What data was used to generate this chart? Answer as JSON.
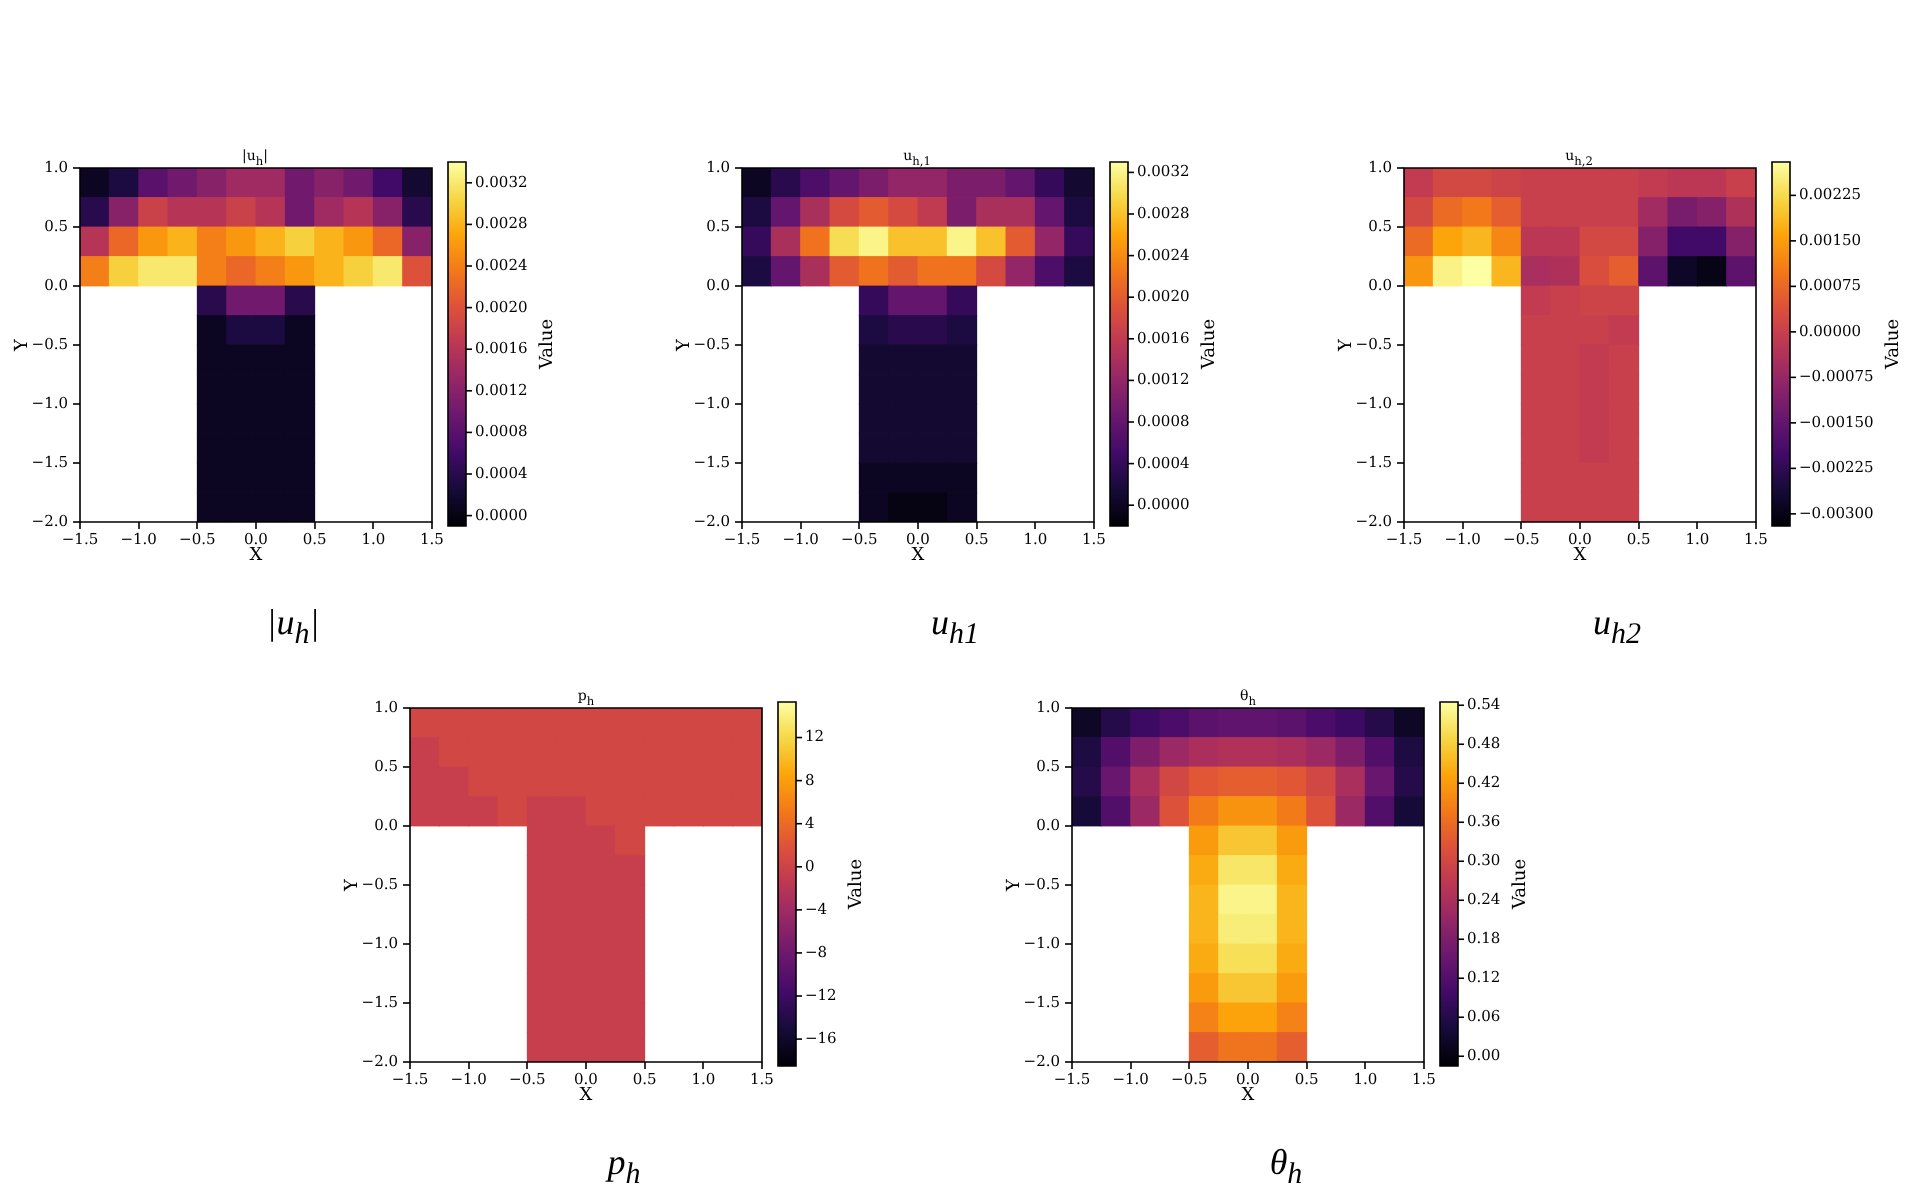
{
  "chart_data": [
    {
      "type": "scatter",
      "marker": "square",
      "title": "|u$_{h}$|",
      "xlabel": "X",
      "ylabel": "Y",
      "clabel": "Value",
      "annotations": [
        "|u$_{h}$|"
      ],
      "x": [
        -1.375,
        -1.125,
        -0.875,
        -0.625,
        -0.375,
        -0.125,
        0.125,
        0.375,
        0.625,
        0.875,
        1.125,
        1.375,
        -1.375,
        -1.125,
        -0.875,
        -0.625,
        -0.375,
        -0.125,
        0.125,
        0.375,
        0.625,
        0.875,
        1.125,
        1.375,
        -1.375,
        -1.125,
        -0.875,
        -0.625,
        -0.375,
        -0.125,
        0.125,
        0.375,
        0.625,
        0.875,
        1.125,
        1.375,
        -1.375,
        -1.125,
        -0.875,
        -0.625,
        -0.375,
        -0.125,
        0.125,
        0.375,
        0.625,
        0.875,
        1.125,
        1.375,
        -0.375,
        -0.125,
        0.125,
        0.375,
        -0.375,
        -0.125,
        0.125,
        0.375,
        -0.375,
        -0.125,
        0.125,
        0.375,
        -0.375,
        -0.125,
        0.125,
        0.375,
        -0.375,
        -0.125,
        0.125,
        0.375,
        -0.375,
        -0.125,
        0.125,
        0.375,
        -0.375,
        -0.125,
        0.125,
        0.375,
        -0.375,
        -0.125,
        0.125,
        0.375
      ],
      "values": [
        0.875,
        0.875,
        0.875,
        0.875,
        0.875,
        0.875,
        0.875,
        0.875,
        0.875,
        0.875,
        0.875,
        0.875,
        0.625,
        0.625,
        0.625,
        0.625,
        0.625,
        0.625,
        0.625,
        0.625,
        0.625,
        0.625,
        0.625,
        0.625,
        0.375,
        0.375,
        0.375,
        0.375,
        0.375,
        0.375,
        0.375,
        0.375,
        0.375,
        0.375,
        0.375,
        0.375,
        0.125,
        0.125,
        0.125,
        0.125,
        0.125,
        0.125,
        0.125,
        0.125,
        0.125,
        0.125,
        0.125,
        0.125,
        -0.125,
        -0.125,
        -0.125,
        -0.125,
        -0.375,
        -0.375,
        -0.375,
        -0.375,
        -0.625,
        -0.625,
        -0.625,
        -0.625,
        -0.875,
        -0.875,
        -0.875,
        -0.875,
        -1.125,
        -1.125,
        -1.125,
        -1.125,
        -1.375,
        -1.375,
        -1.375,
        -1.375,
        -1.625,
        -1.625,
        -1.625,
        -1.625,
        -1.875,
        -1.875,
        -1.875,
        -1.875
      ],
      "cvalues": [
        0.0001,
        0.0003,
        0.0008,
        0.001,
        0.0012,
        0.0014,
        0.0014,
        0.001,
        0.0012,
        0.001,
        0.0006,
        0.0002,
        0.0004,
        0.0012,
        0.0018,
        0.0016,
        0.0016,
        0.0018,
        0.0016,
        0.001,
        0.0014,
        0.0016,
        0.0012,
        0.0004,
        0.0016,
        0.0022,
        0.0026,
        0.0028,
        0.0024,
        0.0026,
        0.0028,
        0.003,
        0.0028,
        0.0026,
        0.0022,
        0.0012,
        0.0024,
        0.003,
        0.0032,
        0.0032,
        0.0024,
        0.0022,
        0.0024,
        0.0026,
        0.0028,
        0.003,
        0.0032,
        0.002,
        0.0004,
        0.001,
        0.001,
        0.0004,
        0.0001,
        0.0003,
        0.0003,
        0.0001,
        0.0001,
        0.0001,
        0.0001,
        0.0001,
        0.0001,
        0.0001,
        0.0001,
        0.0001,
        0.0001,
        0.0001,
        0.0001,
        0.0001,
        0.0001,
        0.0001,
        0.0001,
        0.0001,
        0.0001,
        0.0001,
        0.0001,
        0.0001,
        0.0001,
        0.0001,
        0.0001,
        0.0001
      ],
      "xlim": [
        -1.5,
        1.5
      ],
      "ylim": [
        -2,
        1
      ],
      "xticks": [
        {
          "value": -1.5,
          "label": "−1.5"
        },
        {
          "value": -1,
          "label": "−1.0"
        },
        {
          "value": -0.5,
          "label": "−0.5"
        },
        {
          "value": 0,
          "label": "0.0"
        },
        {
          "value": 0.5,
          "label": "0.5"
        },
        {
          "value": 1,
          "label": "1.0"
        },
        {
          "value": 1.5,
          "label": "1.5"
        }
      ],
      "yticks": [
        {
          "value": -2,
          "label": "−2.0"
        },
        {
          "value": -1.5,
          "label": "−1.5"
        },
        {
          "value": -1,
          "label": "−1.0"
        },
        {
          "value": -0.5,
          "label": "−0.5"
        },
        {
          "value": 0,
          "label": "0.0"
        },
        {
          "value": 0.5,
          "label": "0.5"
        },
        {
          "value": 1,
          "label": "1.0"
        }
      ],
      "clim": [
        -0.0001,
        0.0034
      ],
      "cticks": [
        {
          "value": 0,
          "label": "0.0000"
        },
        0.0004,
        0.0008,
        0.0012,
        0.0016,
        {
          "value": 0.002,
          "label": "0.0020"
        },
        0.0024,
        0.0028,
        0.0032
      ]
    },
    {
      "type": "scatter",
      "marker": "square",
      "title": "u$_{h,1}$",
      "xlabel": "X",
      "ylabel": "Y",
      "clabel": "Value",
      "annotations": [
        "u$_{h1}$"
      ],
      "x": [
        -1.375,
        -1.125,
        -0.875,
        -0.625,
        -0.375,
        -0.125,
        0.125,
        0.375,
        0.625,
        0.875,
        1.125,
        1.375,
        -1.375,
        -1.125,
        -0.875,
        -0.625,
        -0.375,
        -0.125,
        0.125,
        0.375,
        0.625,
        0.875,
        1.125,
        1.375,
        -1.375,
        -1.125,
        -0.875,
        -0.625,
        -0.375,
        -0.125,
        0.125,
        0.375,
        0.625,
        0.875,
        1.125,
        1.375,
        -1.375,
        -1.125,
        -0.875,
        -0.625,
        -0.375,
        -0.125,
        0.125,
        0.375,
        0.625,
        0.875,
        1.125,
        1.375,
        -0.375,
        -0.125,
        0.125,
        0.375,
        -0.375,
        -0.125,
        0.125,
        0.375,
        -0.375,
        -0.125,
        0.125,
        0.375,
        -0.375,
        -0.125,
        0.125,
        0.375,
        -0.375,
        -0.125,
        0.125,
        0.375,
        -0.375,
        -0.125,
        0.125,
        0.375,
        -0.375,
        -0.125,
        0.125,
        0.375,
        -0.375,
        -0.125,
        0.125,
        0.375
      ],
      "values": [
        0.875,
        0.875,
        0.875,
        0.875,
        0.875,
        0.875,
        0.875,
        0.875,
        0.875,
        0.875,
        0.875,
        0.875,
        0.625,
        0.625,
        0.625,
        0.625,
        0.625,
        0.625,
        0.625,
        0.625,
        0.625,
        0.625,
        0.625,
        0.625,
        0.375,
        0.375,
        0.375,
        0.375,
        0.375,
        0.375,
        0.375,
        0.375,
        0.375,
        0.375,
        0.375,
        0.375,
        0.125,
        0.125,
        0.125,
        0.125,
        0.125,
        0.125,
        0.125,
        0.125,
        0.125,
        0.125,
        0.125,
        0.125,
        -0.125,
        -0.125,
        -0.125,
        -0.125,
        -0.375,
        -0.375,
        -0.375,
        -0.375,
        -0.625,
        -0.625,
        -0.625,
        -0.625,
        -0.875,
        -0.875,
        -0.875,
        -0.875,
        -1.125,
        -1.125,
        -1.125,
        -1.125,
        -1.375,
        -1.375,
        -1.375,
        -1.375,
        -1.625,
        -1.625,
        -1.625,
        -1.625,
        -1.875,
        -1.875,
        -1.875,
        -1.875
      ],
      "cvalues": [
        0.0,
        0.0003,
        0.0006,
        0.0008,
        0.001,
        0.0012,
        0.0012,
        0.001,
        0.001,
        0.0008,
        0.0004,
        0.0001,
        0.0002,
        0.0008,
        0.0014,
        0.0018,
        0.002,
        0.0018,
        0.0016,
        0.001,
        0.0014,
        0.0014,
        0.0008,
        0.0002,
        0.0004,
        0.0014,
        0.0022,
        0.003,
        0.0032,
        0.0028,
        0.0028,
        0.0032,
        0.0028,
        0.002,
        0.0012,
        0.0004,
        0.0002,
        0.0008,
        0.0014,
        0.002,
        0.0022,
        0.002,
        0.0022,
        0.0022,
        0.0018,
        0.0012,
        0.0006,
        0.0002,
        0.0004,
        0.0008,
        0.0008,
        0.0004,
        0.0002,
        0.0003,
        0.0003,
        0.0002,
        0.0001,
        0.0001,
        0.0001,
        0.0001,
        0.0001,
        0.0001,
        0.0001,
        0.0001,
        0.0001,
        0.0001,
        0.0001,
        0.0001,
        0.0001,
        0.0001,
        0.0001,
        0.0001,
        0.0,
        0.0,
        0.0,
        0.0,
        0.0,
        -0.0001,
        -0.0001,
        0.0
      ],
      "xlim": [
        -1.5,
        1.5
      ],
      "ylim": [
        -2,
        1
      ],
      "xticks": [
        {
          "value": -1.5,
          "label": "−1.5"
        },
        {
          "value": -1,
          "label": "−1.0"
        },
        {
          "value": -0.5,
          "label": "−0.5"
        },
        {
          "value": 0,
          "label": "0.0"
        },
        {
          "value": 0.5,
          "label": "0.5"
        },
        {
          "value": 1,
          "label": "1.0"
        },
        {
          "value": 1.5,
          "label": "1.5"
        }
      ],
      "yticks": [
        {
          "value": -2,
          "label": "−2.0"
        },
        {
          "value": -1.5,
          "label": "−1.5"
        },
        {
          "value": -1,
          "label": "−1.0"
        },
        {
          "value": -0.5,
          "label": "−0.5"
        },
        {
          "value": 0,
          "label": "0.0"
        },
        {
          "value": 0.5,
          "label": "0.5"
        },
        {
          "value": 1,
          "label": "1.0"
        }
      ],
      "clim": [
        -0.0002,
        0.0033
      ],
      "cticks": [
        {
          "value": 0,
          "label": "0.0000"
        },
        0.0004,
        0.0008,
        0.0012,
        0.0016,
        {
          "value": 0.002,
          "label": "0.0020"
        },
        0.0024,
        0.0028,
        0.0032
      ]
    },
    {
      "type": "scatter",
      "marker": "square",
      "title": "u$_{h,2}$",
      "xlabel": "X",
      "ylabel": "Y",
      "clabel": "Value",
      "annotations": [
        "u$_{h2}$"
      ],
      "x": [
        -1.375,
        -1.125,
        -0.875,
        -0.625,
        -0.375,
        -0.125,
        0.125,
        0.375,
        0.625,
        0.875,
        1.125,
        1.375,
        -1.375,
        -1.125,
        -0.875,
        -0.625,
        -0.375,
        -0.125,
        0.125,
        0.375,
        0.625,
        0.875,
        1.125,
        1.375,
        -1.375,
        -1.125,
        -0.875,
        -0.625,
        -0.375,
        -0.125,
        0.125,
        0.375,
        0.625,
        0.875,
        1.125,
        1.375,
        -1.375,
        -1.125,
        -0.875,
        -0.625,
        -0.375,
        -0.125,
        0.125,
        0.375,
        0.625,
        0.875,
        1.125,
        1.375,
        -0.375,
        -0.125,
        0.125,
        0.375,
        -0.375,
        -0.125,
        0.125,
        0.375,
        -0.375,
        -0.125,
        0.125,
        0.375,
        -0.375,
        -0.125,
        0.125,
        0.375,
        -0.375,
        -0.125,
        0.125,
        0.375,
        -0.375,
        -0.125,
        0.125,
        0.375,
        -0.375,
        -0.125,
        0.125,
        0.375,
        -0.375,
        -0.125,
        0.125,
        0.375
      ],
      "values": [
        0.875,
        0.875,
        0.875,
        0.875,
        0.875,
        0.875,
        0.875,
        0.875,
        0.875,
        0.875,
        0.875,
        0.875,
        0.625,
        0.625,
        0.625,
        0.625,
        0.625,
        0.625,
        0.625,
        0.625,
        0.625,
        0.625,
        0.625,
        0.625,
        0.375,
        0.375,
        0.375,
        0.375,
        0.375,
        0.375,
        0.375,
        0.375,
        0.375,
        0.375,
        0.375,
        0.375,
        0.125,
        0.125,
        0.125,
        0.125,
        0.125,
        0.125,
        0.125,
        0.125,
        0.125,
        0.125,
        0.125,
        0.125,
        -0.125,
        -0.125,
        -0.125,
        -0.125,
        -0.375,
        -0.375,
        -0.375,
        -0.375,
        -0.625,
        -0.625,
        -0.625,
        -0.625,
        -0.875,
        -0.875,
        -0.875,
        -0.875,
        -1.125,
        -1.125,
        -1.125,
        -1.125,
        -1.375,
        -1.375,
        -1.375,
        -1.375,
        -1.625,
        -1.625,
        -1.625,
        -1.625,
        -1.875,
        -1.875,
        -1.875,
        -1.875
      ],
      "cvalues": [
        -0.0001,
        0.0002,
        0.0002,
        0.0001,
        0.0,
        0.0,
        0.0,
        0.0,
        -0.0001,
        -0.0002,
        -0.0002,
        0.0,
        0.0002,
        0.0008,
        0.001,
        0.0006,
        0.0,
        0.0,
        0.0,
        0.0,
        -0.0006,
        -0.0012,
        -0.001,
        -0.0004,
        0.0008,
        0.0016,
        0.0018,
        0.0012,
        -0.0002,
        -0.0002,
        0.0002,
        0.0002,
        -0.001,
        -0.002,
        -0.002,
        -0.001,
        0.0014,
        0.0026,
        0.0028,
        0.0018,
        -0.0005,
        -0.0004,
        0.0003,
        0.0006,
        -0.0016,
        -0.0028,
        -0.003,
        -0.0016,
        -0.0001,
        0.0,
        0.0001,
        0.0001,
        0.0,
        0.0,
        0.0,
        -0.0001,
        0.0,
        0.0,
        -0.0001,
        0.0,
        0.0,
        0.0,
        -0.0001,
        0.0,
        0.0,
        0.0,
        -0.0001,
        0.0,
        0.0,
        0.0,
        -0.0001,
        0.0,
        0.0,
        0.0,
        0.0,
        0.0,
        0.0,
        0.0,
        0.0,
        0.0
      ],
      "xlim": [
        -1.5,
        1.5
      ],
      "ylim": [
        -2,
        1
      ],
      "xticks": [
        {
          "value": -1.5,
          "label": "−1.5"
        },
        {
          "value": -1,
          "label": "−1.0"
        },
        {
          "value": -0.5,
          "label": "−0.5"
        },
        {
          "value": 0,
          "label": "0.0"
        },
        {
          "value": 0.5,
          "label": "0.5"
        },
        {
          "value": 1,
          "label": "1.0"
        },
        {
          "value": 1.5,
          "label": "1.5"
        }
      ],
      "yticks": [
        {
          "value": -2,
          "label": "−2.0"
        },
        {
          "value": -1.5,
          "label": "−1.5"
        },
        {
          "value": -1,
          "label": "−1.0"
        },
        {
          "value": -0.5,
          "label": "−0.5"
        },
        {
          "value": 0,
          "label": "0.0"
        },
        {
          "value": 0.5,
          "label": "0.5"
        },
        {
          "value": 1,
          "label": "1.0"
        }
      ],
      "clim": [
        -0.0032,
        0.0028
      ],
      "cticks": [
        {
          "value": -0.003,
          "label": "−0.00300"
        },
        {
          "value": -0.00225,
          "label": "−0.00225"
        },
        {
          "value": -0.0015,
          "label": "−0.00150"
        },
        {
          "value": -0.00075,
          "label": "−0.00075"
        },
        {
          "value": 0,
          "label": "0.00000"
        },
        0.00075,
        {
          "value": 0.0015,
          "label": "0.00150"
        },
        0.00225
      ]
    },
    {
      "type": "scatter",
      "marker": "square",
      "title": "p$_{h}$",
      "xlabel": "X",
      "ylabel": "Y",
      "clabel": "Value",
      "annotations": [
        "p$_{h}$"
      ],
      "x": [
        -1.375,
        -1.125,
        -0.875,
        -0.625,
        -0.375,
        -0.125,
        0.125,
        0.375,
        0.625,
        0.875,
        1.125,
        1.375,
        -1.375,
        -1.125,
        -0.875,
        -0.625,
        -0.375,
        -0.125,
        0.125,
        0.375,
        0.625,
        0.875,
        1.125,
        1.375,
        -1.375,
        -1.125,
        -0.875,
        -0.625,
        -0.375,
        -0.125,
        0.125,
        0.375,
        0.625,
        0.875,
        1.125,
        1.375,
        -1.375,
        -1.125,
        -0.875,
        -0.625,
        -0.375,
        -0.125,
        0.125,
        0.375,
        0.625,
        0.875,
        1.125,
        1.375,
        -0.375,
        -0.125,
        0.125,
        0.375,
        -0.375,
        -0.125,
        0.125,
        0.375,
        -0.375,
        -0.125,
        0.125,
        0.375,
        -0.375,
        -0.125,
        0.125,
        0.375,
        -0.375,
        -0.125,
        0.125,
        0.375,
        -0.375,
        -0.125,
        0.125,
        0.375,
        -0.375,
        -0.125,
        0.125,
        0.375,
        -0.375,
        -0.125,
        0.125,
        0.375
      ],
      "values": [
        0.875,
        0.875,
        0.875,
        0.875,
        0.875,
        0.875,
        0.875,
        0.875,
        0.875,
        0.875,
        0.875,
        0.875,
        0.625,
        0.625,
        0.625,
        0.625,
        0.625,
        0.625,
        0.625,
        0.625,
        0.625,
        0.625,
        0.625,
        0.625,
        0.375,
        0.375,
        0.375,
        0.375,
        0.375,
        0.375,
        0.375,
        0.375,
        0.375,
        0.375,
        0.375,
        0.375,
        0.125,
        0.125,
        0.125,
        0.125,
        0.125,
        0.125,
        0.125,
        0.125,
        0.125,
        0.125,
        0.125,
        0.125,
        -0.125,
        -0.125,
        -0.125,
        -0.125,
        -0.375,
        -0.375,
        -0.375,
        -0.375,
        -0.625,
        -0.625,
        -0.625,
        -0.625,
        -0.875,
        -0.875,
        -0.875,
        -0.875,
        -1.125,
        -1.125,
        -1.125,
        -1.125,
        -1.375,
        -1.375,
        -1.375,
        -1.375,
        -1.625,
        -1.625,
        -1.625,
        -1.625,
        -1.875,
        -1.875,
        -1.875,
        -1.875
      ],
      "cvalues": [
        0.5,
        0.5,
        0.5,
        0.5,
        0.5,
        0.5,
        0.5,
        0.5,
        0.5,
        0.5,
        0.5,
        0.5,
        -0.5,
        0.5,
        0.5,
        0.5,
        0.5,
        0.5,
        0.5,
        0.5,
        0.5,
        0.5,
        0.5,
        0.5,
        -0.5,
        -0.5,
        0.5,
        0.5,
        0.5,
        0.5,
        0.5,
        0.5,
        0.5,
        0.5,
        0.5,
        0.5,
        -0.5,
        -0.5,
        -0.5,
        0.5,
        -0.5,
        -0.5,
        0.5,
        0.5,
        0.5,
        0.5,
        0.5,
        0.5,
        -0.5,
        -0.5,
        -0.5,
        0.5,
        -0.5,
        -0.5,
        -0.5,
        -0.5,
        -0.5,
        -0.5,
        -0.5,
        -0.5,
        -0.5,
        -0.5,
        -0.5,
        -0.5,
        -0.5,
        -0.5,
        -0.5,
        -0.5,
        -0.5,
        -0.5,
        -0.5,
        -0.5,
        -0.5,
        -0.5,
        -0.5,
        -0.5,
        -0.5,
        -0.5,
        -0.5,
        -0.5
      ],
      "xlim": [
        -1.5,
        1.5
      ],
      "ylim": [
        -2,
        1
      ],
      "xticks": [
        {
          "value": -1.5,
          "label": "−1.5"
        },
        {
          "value": -1,
          "label": "−1.0"
        },
        {
          "value": -0.5,
          "label": "−0.5"
        },
        {
          "value": 0,
          "label": "0.0"
        },
        {
          "value": 0.5,
          "label": "0.5"
        },
        {
          "value": 1,
          "label": "1.0"
        },
        {
          "value": 1.5,
          "label": "1.5"
        }
      ],
      "yticks": [
        {
          "value": -2,
          "label": "−2.0"
        },
        {
          "value": -1.5,
          "label": "−1.5"
        },
        {
          "value": -1,
          "label": "−1.0"
        },
        {
          "value": -0.5,
          "label": "−0.5"
        },
        {
          "value": 0,
          "label": "0.0"
        },
        {
          "value": 0.5,
          "label": "0.5"
        },
        {
          "value": 1,
          "label": "1.0"
        }
      ],
      "clim": [
        -18.5,
        15.3
      ],
      "cticks": [
        {
          "value": -16,
          "label": "−16"
        },
        {
          "value": -12,
          "label": "−12"
        },
        {
          "value": -8,
          "label": "−8"
        },
        {
          "value": -4,
          "label": "−4"
        },
        0,
        4,
        8,
        12
      ]
    },
    {
      "type": "scatter",
      "marker": "square",
      "title": "θ$_{h}$",
      "xlabel": "X",
      "ylabel": "Y",
      "clabel": "Value",
      "annotations": [
        "θ$_{h}$"
      ],
      "x": [
        -1.375,
        -1.125,
        -0.875,
        -0.625,
        -0.375,
        -0.125,
        0.125,
        0.375,
        0.625,
        0.875,
        1.125,
        1.375,
        -1.375,
        -1.125,
        -0.875,
        -0.625,
        -0.375,
        -0.125,
        0.125,
        0.375,
        0.625,
        0.875,
        1.125,
        1.375,
        -1.375,
        -1.125,
        -0.875,
        -0.625,
        -0.375,
        -0.125,
        0.125,
        0.375,
        0.625,
        0.875,
        1.125,
        1.375,
        -1.375,
        -1.125,
        -0.875,
        -0.625,
        -0.375,
        -0.125,
        0.125,
        0.375,
        0.625,
        0.875,
        1.125,
        1.375,
        -0.375,
        -0.125,
        0.125,
        0.375,
        -0.375,
        -0.125,
        0.125,
        0.375,
        -0.375,
        -0.125,
        0.125,
        0.375,
        -0.375,
        -0.125,
        0.125,
        0.375,
        -0.375,
        -0.125,
        0.125,
        0.375,
        -0.375,
        -0.125,
        0.125,
        0.375,
        -0.375,
        -0.125,
        0.125,
        0.375,
        -0.375,
        -0.125,
        0.125,
        0.375
      ],
      "values": [
        0.875,
        0.875,
        0.875,
        0.875,
        0.875,
        0.875,
        0.875,
        0.875,
        0.875,
        0.875,
        0.875,
        0.875,
        0.625,
        0.625,
        0.625,
        0.625,
        0.625,
        0.625,
        0.625,
        0.625,
        0.625,
        0.625,
        0.625,
        0.625,
        0.375,
        0.375,
        0.375,
        0.375,
        0.375,
        0.375,
        0.375,
        0.375,
        0.375,
        0.375,
        0.375,
        0.375,
        0.125,
        0.125,
        0.125,
        0.125,
        0.125,
        0.125,
        0.125,
        0.125,
        0.125,
        0.125,
        0.125,
        0.125,
        -0.125,
        -0.125,
        -0.125,
        -0.125,
        -0.375,
        -0.375,
        -0.375,
        -0.375,
        -0.625,
        -0.625,
        -0.625,
        -0.625,
        -0.875,
        -0.875,
        -0.875,
        -0.875,
        -1.125,
        -1.125,
        -1.125,
        -1.125,
        -1.375,
        -1.375,
        -1.375,
        -1.375,
        -1.625,
        -1.625,
        -1.625,
        -1.625,
        -1.875,
        -1.875,
        -1.875,
        -1.875
      ],
      "cvalues": [
        0.02,
        0.06,
        0.09,
        0.11,
        0.13,
        0.14,
        0.14,
        0.13,
        0.11,
        0.09,
        0.06,
        0.02,
        0.05,
        0.12,
        0.18,
        0.22,
        0.24,
        0.25,
        0.25,
        0.24,
        0.22,
        0.18,
        0.12,
        0.05,
        0.06,
        0.15,
        0.24,
        0.3,
        0.33,
        0.34,
        0.34,
        0.33,
        0.3,
        0.24,
        0.15,
        0.06,
        0.04,
        0.12,
        0.22,
        0.32,
        0.38,
        0.41,
        0.41,
        0.38,
        0.32,
        0.22,
        0.12,
        0.04,
        0.42,
        0.47,
        0.47,
        0.42,
        0.44,
        0.51,
        0.51,
        0.44,
        0.45,
        0.53,
        0.53,
        0.45,
        0.45,
        0.52,
        0.52,
        0.45,
        0.44,
        0.5,
        0.5,
        0.44,
        0.42,
        0.47,
        0.47,
        0.42,
        0.39,
        0.43,
        0.43,
        0.39,
        0.34,
        0.37,
        0.37,
        0.34
      ],
      "xlim": [
        -1.5,
        1.5
      ],
      "ylim": [
        -2,
        1
      ],
      "xticks": [
        {
          "value": -1.5,
          "label": "−1.5"
        },
        {
          "value": -1,
          "label": "−1.0"
        },
        {
          "value": -0.5,
          "label": "−0.5"
        },
        {
          "value": 0,
          "label": "0.0"
        },
        {
          "value": 0.5,
          "label": "0.5"
        },
        {
          "value": 1,
          "label": "1.0"
        },
        {
          "value": 1.5,
          "label": "1.5"
        }
      ],
      "yticks": [
        {
          "value": -2,
          "label": "−2.0"
        },
        {
          "value": -1.5,
          "label": "−1.5"
        },
        {
          "value": -1,
          "label": "−1.0"
        },
        {
          "value": -0.5,
          "label": "−0.5"
        },
        {
          "value": 0,
          "label": "0.0"
        },
        {
          "value": 0.5,
          "label": "0.5"
        },
        {
          "value": 1,
          "label": "1.0"
        }
      ],
      "clim": [
        -0.015,
        0.545
      ],
      "cticks": [
        {
          "value": 0,
          "label": "0.00"
        },
        0.06,
        0.12,
        0.18,
        0.24,
        {
          "value": 0.3,
          "label": "0.30"
        },
        0.36,
        0.42,
        0.48,
        0.54
      ]
    }
  ]
}
